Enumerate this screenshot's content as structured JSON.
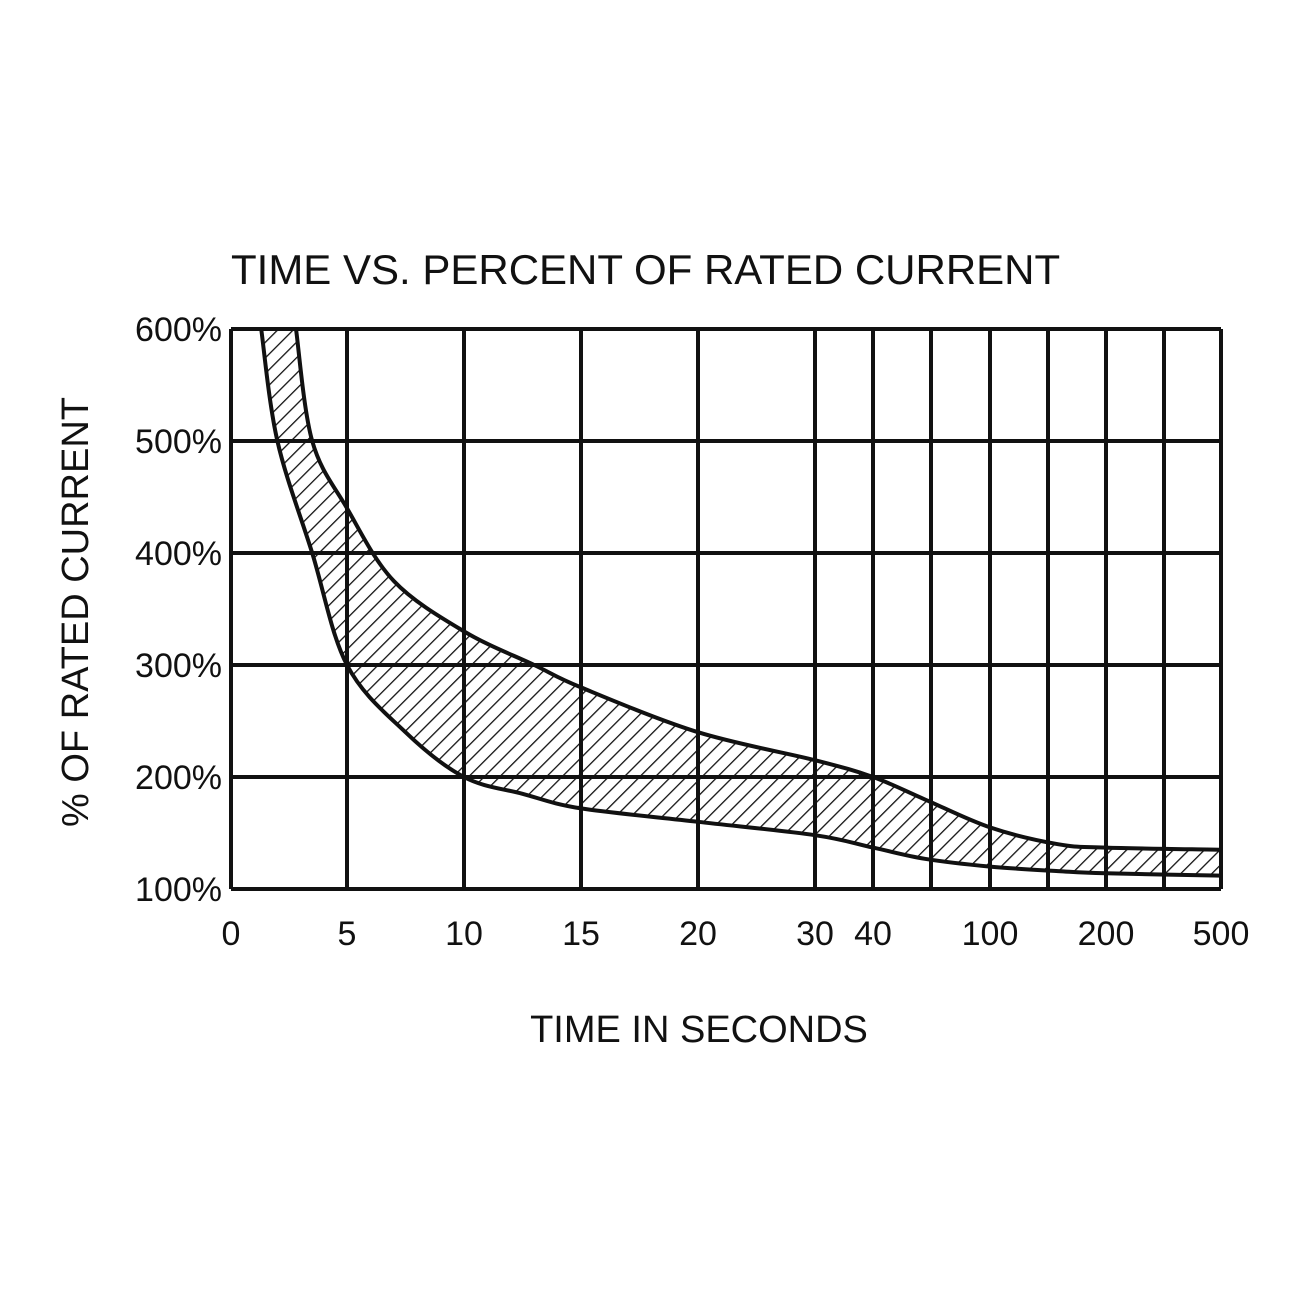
{
  "chart_data": {
    "type": "area",
    "title": "TIME VS. PERCENT OF RATED CURRENT",
    "xlabel": "TIME IN SECONDS",
    "ylabel": "% OF RATED CURRENT",
    "x_tick_labels": [
      "0",
      "5",
      "10",
      "15",
      "20",
      "30",
      "40",
      "100",
      "200",
      "500"
    ],
    "y_tick_labels": [
      "100%",
      "200%",
      "300%",
      "400%",
      "500%",
      "600%"
    ],
    "ylim": [
      100,
      600
    ],
    "grid": true,
    "x_scale": "nonuniform",
    "fill": "hatched band between minimum and maximum trip curves",
    "series": [
      {
        "role": "upper boundary",
        "points": [
          {
            "x": 2.8,
            "y": 600
          },
          {
            "x": 3.5,
            "y": 500
          },
          {
            "x": 5,
            "y": 440
          },
          {
            "x": 7,
            "y": 375
          },
          {
            "x": 10,
            "y": 330
          },
          {
            "x": 13,
            "y": 300
          },
          {
            "x": 15,
            "y": 280
          },
          {
            "x": 20,
            "y": 240
          },
          {
            "x": 30,
            "y": 215
          },
          {
            "x": 40,
            "y": 200
          },
          {
            "x": 60,
            "y": 180
          },
          {
            "x": 100,
            "y": 155
          },
          {
            "x": 150,
            "y": 140
          },
          {
            "x": 200,
            "y": 137
          },
          {
            "x": 500,
            "y": 135
          }
        ]
      },
      {
        "role": "lower boundary",
        "points": [
          {
            "x": 1.3,
            "y": 600
          },
          {
            "x": 2,
            "y": 500
          },
          {
            "x": 3.5,
            "y": 400
          },
          {
            "x": 5,
            "y": 300
          },
          {
            "x": 7.5,
            "y": 240
          },
          {
            "x": 10,
            "y": 200
          },
          {
            "x": 12.5,
            "y": 185
          },
          {
            "x": 15,
            "y": 172
          },
          {
            "x": 20,
            "y": 160
          },
          {
            "x": 30,
            "y": 148
          },
          {
            "x": 40,
            "y": 137
          },
          {
            "x": 60,
            "y": 127
          },
          {
            "x": 100,
            "y": 120
          },
          {
            "x": 150,
            "y": 116
          },
          {
            "x": 200,
            "y": 114
          },
          {
            "x": 500,
            "y": 112
          }
        ]
      }
    ]
  }
}
